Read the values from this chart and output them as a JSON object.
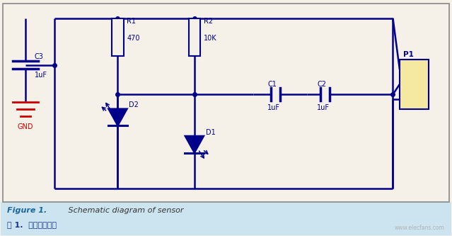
{
  "background_color": "#f5f0e8",
  "circuit_color": "#00008B",
  "caption_en": "Figure 1.",
  "caption_en_rest": " Schematic diagram of sensor",
  "caption_zh": "图 1.  传感器原理图",
  "gnd_color": "#cc0000",
  "label_color": "#00008B",
  "watermark_color": "#aaaaaa",
  "caption_bg_color": "#cce4f0",
  "p1_fill_color": "#f5e8a0",
  "figsize": [
    6.39,
    3.33
  ],
  "dpi": 100
}
